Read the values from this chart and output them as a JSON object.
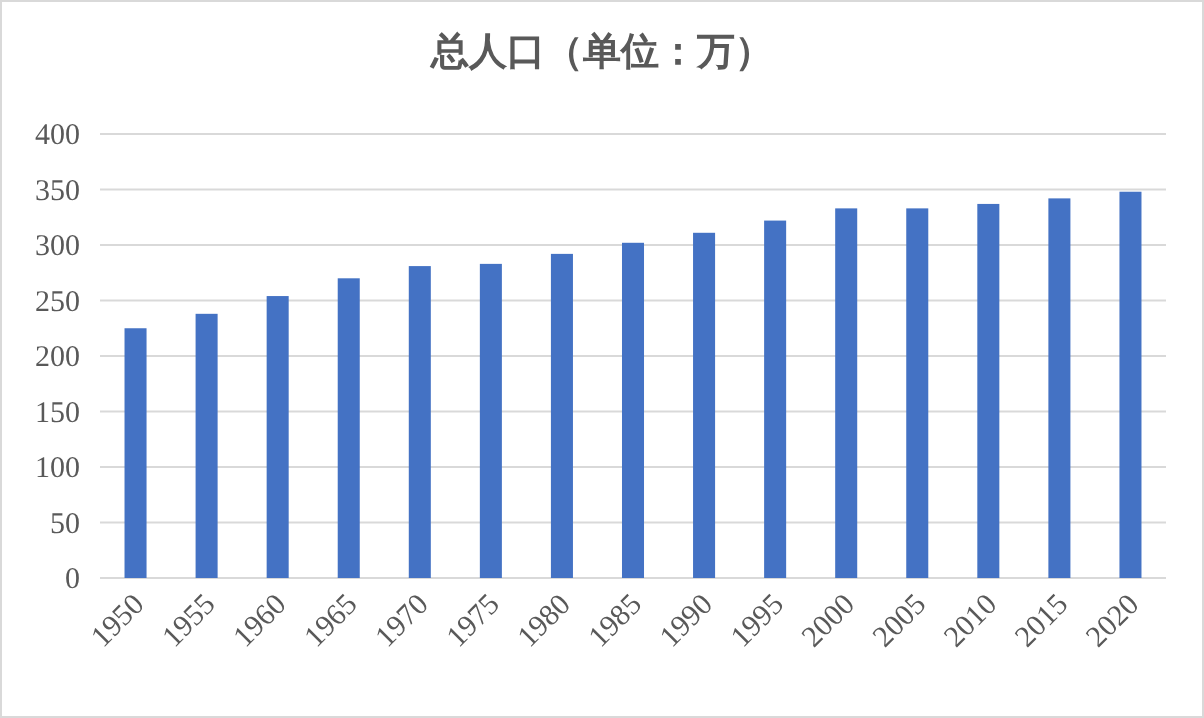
{
  "chart_data": {
    "type": "bar",
    "title": "总人口（单位：万）",
    "categories": [
      "1950",
      "1955",
      "1960",
      "1965",
      "1970",
      "1975",
      "1980",
      "1985",
      "1990",
      "1995",
      "2000",
      "2005",
      "2010",
      "2015",
      "2020"
    ],
    "values": [
      225,
      238,
      254,
      270,
      281,
      283,
      292,
      302,
      311,
      322,
      333,
      333,
      337,
      342,
      348
    ],
    "color": "#4472c4",
    "ylim": [
      0,
      400
    ],
    "yticks": [
      0,
      50,
      100,
      150,
      200,
      250,
      300,
      350,
      400
    ],
    "grid": "y"
  }
}
